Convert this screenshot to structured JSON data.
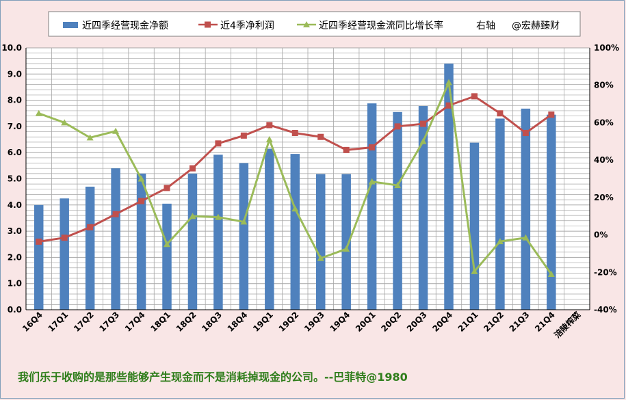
{
  "chart_data": {
    "type": "bar+line",
    "categories": [
      "16Q4",
      "17Q1",
      "17Q2",
      "17Q3",
      "17Q4",
      "18Q1",
      "18Q2",
      "18Q3",
      "18Q4",
      "19Q1",
      "19Q2",
      "19Q3",
      "19Q4",
      "20Q1",
      "20Q2",
      "20Q3",
      "20Q4",
      "21Q1",
      "21Q2",
      "21Q3",
      "21Q4",
      "涪陵榨菜"
    ],
    "series": [
      {
        "name": "近四季经营现金净额",
        "type": "bar",
        "axis": "left",
        "color": "#4f81bd",
        "values": [
          4.0,
          4.25,
          4.7,
          5.4,
          5.2,
          4.05,
          5.2,
          5.92,
          5.6,
          6.15,
          5.95,
          5.18,
          5.18,
          7.88,
          7.55,
          7.78,
          9.4,
          6.38,
          7.3,
          7.68,
          7.45,
          null
        ]
      },
      {
        "name": "近4季净利润",
        "type": "line",
        "axis": "left",
        "color": "#c0504d",
        "values": [
          2.6,
          2.75,
          3.15,
          3.65,
          4.15,
          4.65,
          5.4,
          6.35,
          6.65,
          7.05,
          6.75,
          6.6,
          6.1,
          6.2,
          7.0,
          7.1,
          7.8,
          8.15,
          7.5,
          6.75,
          7.45,
          null
        ]
      },
      {
        "name": "近四季经营现金流同比增长率",
        "type": "line",
        "axis": "right",
        "color": "#9bbb59",
        "values": [
          65,
          60,
          52,
          55.5,
          30,
          -5,
          10,
          9.5,
          7,
          51,
          14,
          -12.5,
          -7.5,
          28.5,
          26.5,
          50,
          81.5,
          -19.5,
          -3.5,
          -1.5,
          -21,
          null
        ]
      }
    ],
    "ylim": [
      0,
      10
    ],
    "y2lim": [
      -40,
      100
    ],
    "yticks": [
      "0.0",
      "1.0",
      "2.0",
      "3.0",
      "4.0",
      "5.0",
      "6.0",
      "7.0",
      "8.0",
      "9.0",
      "10.0"
    ],
    "y2ticks": [
      "-40%",
      "-20%",
      "0%",
      "20%",
      "40%",
      "60%",
      "80%",
      "100%"
    ],
    "legend": {
      "position": "top",
      "extra_labels": [
        "右轴",
        "@宏赫臻财"
      ]
    },
    "grid": true
  },
  "footer": "我们乐于收购的是那些能够产生现金而不是消耗掉现金的公司。--巴菲特@1980",
  "colors": {
    "background": "#f9e6e6",
    "plot_background": "#ffffff",
    "grid": "#a6a6a6",
    "footer_text": "#2e7d1a"
  }
}
